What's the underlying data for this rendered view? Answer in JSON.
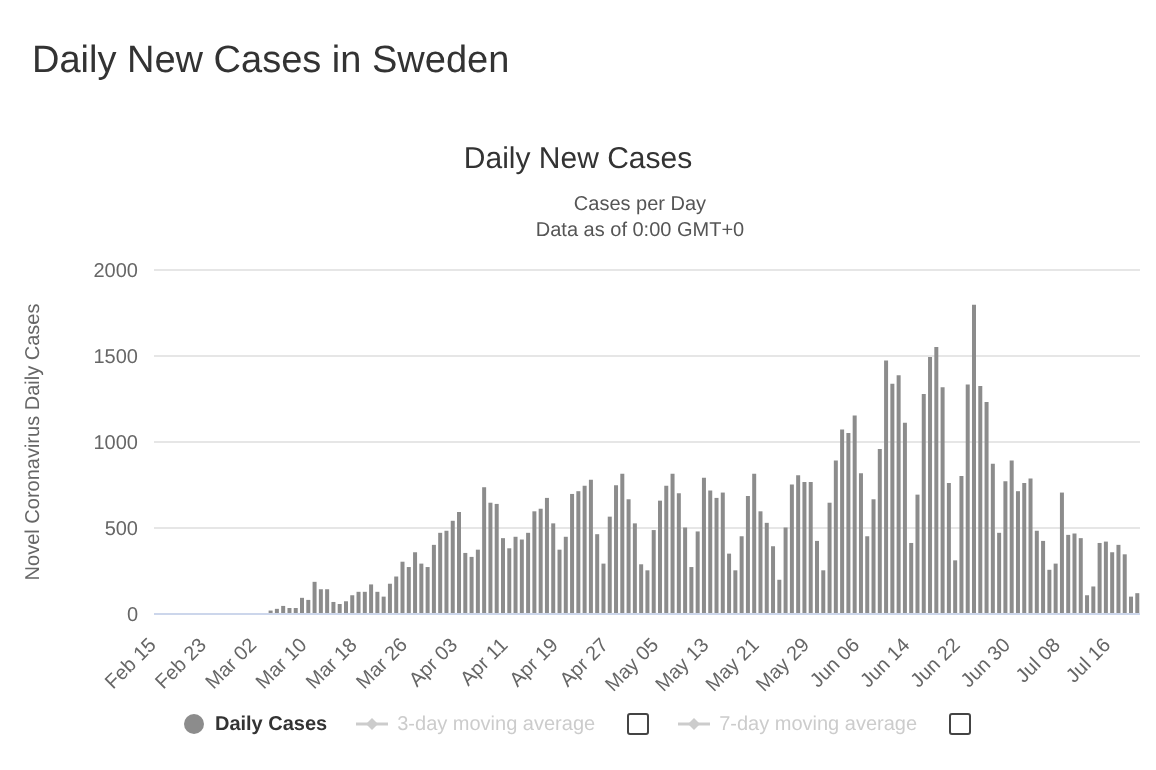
{
  "chart_data": {
    "type": "bar",
    "title": "Daily New Cases",
    "subtitle": "Cases per Day\nData as of 0:00 GMT+0",
    "annotations": [
      "Daily New Cases in Sweden",
      "3-day moving average",
      "7-day moving average"
    ],
    "ylabel": "Novel Coronavirus Daily Cases",
    "categories": [
      "Feb 15",
      null,
      null,
      null,
      null,
      null,
      null,
      null,
      "Feb 23",
      null,
      null,
      null,
      null,
      null,
      null,
      null,
      "Mar 02",
      null,
      null,
      null,
      null,
      null,
      null,
      null,
      "Mar 10",
      null,
      null,
      null,
      null,
      null,
      null,
      null,
      "Mar 18",
      null,
      null,
      null,
      null,
      null,
      null,
      null,
      "Mar 26",
      null,
      null,
      null,
      null,
      null,
      null,
      null,
      "Apr 03",
      null,
      null,
      null,
      null,
      null,
      null,
      null,
      "Apr 11",
      null,
      null,
      null,
      null,
      null,
      null,
      null,
      "Apr 19",
      null,
      null,
      null,
      null,
      null,
      null,
      null,
      "Apr 27",
      null,
      null,
      null,
      null,
      null,
      null,
      null,
      "May 05",
      null,
      null,
      null,
      null,
      null,
      null,
      null,
      "May 13",
      null,
      null,
      null,
      null,
      null,
      null,
      null,
      "May 21",
      null,
      null,
      null,
      null,
      null,
      null,
      null,
      "May 29",
      null,
      null,
      null,
      null,
      null,
      null,
      null,
      "Jun 06",
      null,
      null,
      null,
      null,
      null,
      null,
      null,
      "Jun 14",
      null,
      null,
      null,
      null,
      null,
      null,
      null,
      "Jun 22",
      null,
      null,
      null,
      null,
      null,
      null,
      null,
      "Jun 30",
      null,
      null,
      null,
      null,
      null,
      null,
      null,
      "Jul 08",
      null,
      null,
      null,
      null,
      null,
      null,
      null,
      "Jul 16",
      null,
      null,
      null,
      null
    ],
    "series": [
      {
        "name": "Daily Cases",
        "color": "#8c8c8c",
        "values": [
          0,
          0,
          0,
          0,
          0,
          0,
          0,
          0,
          0,
          0,
          0,
          0,
          0,
          0,
          0,
          0,
          0,
          0,
          20,
          30,
          47,
          35,
          35,
          94,
          82,
          187,
          144,
          144,
          70,
          58,
          74,
          109,
          129,
          129,
          172,
          129,
          101,
          176,
          218,
          304,
          273,
          359,
          293,
          273,
          402,
          472,
          484,
          542,
          593,
          355,
          332,
          374,
          737,
          647,
          640,
          441,
          382,
          449,
          433,
          472,
          597,
          612,
          675,
          527,
          374,
          449,
          698,
          714,
          745,
          780,
          464,
          293,
          566,
          749,
          815,
          667,
          527,
          289,
          254,
          488,
          659,
          745,
          815,
          702,
          503,
          273,
          480,
          792,
          718,
          675,
          706,
          351,
          254,
          452,
          686,
          815,
          597,
          530,
          394,
          199,
          503,
          753,
          807,
          768,
          768,
          425,
          254,
          647,
          893,
          1073,
          1053,
          1154,
          819,
          452,
          667,
          959,
          1474,
          1338,
          1388,
          1112,
          413,
          694,
          1279,
          1494,
          1552,
          1318,
          761,
          312,
          803,
          1334,
          1798,
          1326,
          1232,
          874,
          472,
          772,
          893,
          714,
          761,
          788,
          484,
          425,
          257,
          293,
          706,
          460,
          468,
          441,
          109,
          160,
          413,
          421,
          359,
          402,
          347,
          101,
          121
        ]
      }
    ],
    "ylim": [
      0,
      2000
    ],
    "yticks": [
      0,
      500,
      1000,
      1500,
      2000
    ],
    "grid": "y",
    "legend": "bottom"
  }
}
